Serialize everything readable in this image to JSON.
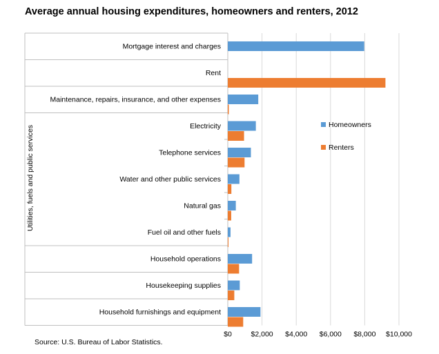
{
  "chart_data": {
    "type": "bar",
    "orientation": "horizontal",
    "title": "Average annual housing expenditures, homeowners and renters, 2012",
    "source": "Source: U.S. Bureau of Labor Statistics.",
    "group_label": "Utilities, fuels and public services",
    "categories": [
      "Mortgage interest and charges",
      "Rent",
      "Maintenance, repairs, insurance, and other expenses",
      "Electricity",
      "Telephone services",
      "Water and other public services",
      "Natural gas",
      "Fuel oil and other fuels",
      "Household operations",
      "Housekeeping supplies",
      "Household furnishings and equipment"
    ],
    "series": [
      {
        "name": "Homeowners",
        "color": "#5B9BD5",
        "values": [
          7970,
          0,
          1780,
          1640,
          1350,
          680,
          470,
          160,
          1420,
          700,
          1910
        ]
      },
      {
        "name": "Renters",
        "color": "#ED7D31",
        "values": [
          0,
          9210,
          60,
          950,
          980,
          210,
          200,
          40,
          660,
          380,
          900
        ]
      }
    ],
    "xlim": [
      0,
      10000
    ],
    "x_ticks": [
      "$0",
      "$2,000",
      "$4,000",
      "$6,000",
      "$8,000",
      "$10,000"
    ],
    "x_tick_values": [
      0,
      2000,
      4000,
      6000,
      8000,
      10000
    ],
    "legend_position": "right",
    "grid": true
  }
}
